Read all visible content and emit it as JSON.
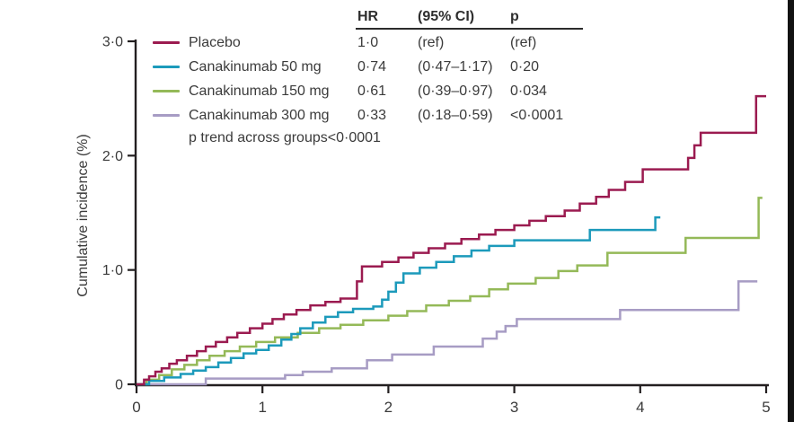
{
  "figure": {
    "background": "#ffffff",
    "right_border_color": "#121212",
    "text_color": "#3b3b3b",
    "axis_color": "#231f20"
  },
  "legend": {
    "columns": {
      "hr": "HR",
      "ci": "(95% CI)",
      "p": "p"
    },
    "rows": [
      {
        "label": "Placebo",
        "color": "#9b1b50",
        "hr": "1·0",
        "ci": "(ref)",
        "p": "(ref)"
      },
      {
        "label": "Canakinumab 50 mg",
        "color": "#1c9abb",
        "hr": "0·74",
        "ci": "(0·47–1·17)",
        "p": "0·20"
      },
      {
        "label": "Canakinumab 150 mg",
        "color": "#94b958",
        "hr": "0·61",
        "ci": "(0·39–0·97)",
        "p": "0·034"
      },
      {
        "label": "Canakinumab 300 mg",
        "color": "#a79cc4",
        "hr": "0·33",
        "ci": "(0·18–0·59)",
        "p": "<0·0001"
      }
    ],
    "trend_note": "p trend across groups<0·0001"
  },
  "chart_data": {
    "type": "line",
    "variant": "step-after cumulative incidence (Kaplan-Meier style)",
    "title": "",
    "xlabel": "",
    "ylabel": "Cumulative incidence (%)",
    "xlim": [
      0,
      5
    ],
    "ylim": [
      0,
      3
    ],
    "grid": false,
    "legend_position": "top-left (table with HR, 95% CI, p)",
    "xticks": [
      {
        "value": 0,
        "label": "0"
      },
      {
        "value": 1,
        "label": "1"
      },
      {
        "value": 2,
        "label": "2"
      },
      {
        "value": 3,
        "label": "3"
      },
      {
        "value": 4,
        "label": "4"
      },
      {
        "value": 5,
        "label": "5"
      }
    ],
    "yticks": [
      {
        "value": 0,
        "label": "0"
      },
      {
        "value": 1,
        "label": "1·0"
      },
      {
        "value": 2,
        "label": "2·0"
      },
      {
        "value": 3,
        "label": "3·0"
      }
    ],
    "series": [
      {
        "name": "Canakinumab 300 mg",
        "color": "#a79cc4",
        "points": [
          [
            0,
            0
          ],
          [
            0.55,
            0.05
          ],
          [
            1.18,
            0.08
          ],
          [
            1.32,
            0.11
          ],
          [
            1.55,
            0.14
          ],
          [
            1.83,
            0.21
          ],
          [
            2.03,
            0.26
          ],
          [
            2.36,
            0.33
          ],
          [
            2.75,
            0.4
          ],
          [
            2.86,
            0.46
          ],
          [
            2.93,
            0.51
          ],
          [
            3.02,
            0.57
          ],
          [
            3.84,
            0.65
          ],
          [
            4.78,
            0.9
          ],
          [
            4.93,
            0.9
          ]
        ]
      },
      {
        "name": "Canakinumab 150 mg",
        "color": "#94b958",
        "points": [
          [
            0,
            0
          ],
          [
            0.08,
            0.04
          ],
          [
            0.18,
            0.08
          ],
          [
            0.28,
            0.13
          ],
          [
            0.38,
            0.17
          ],
          [
            0.48,
            0.21
          ],
          [
            0.58,
            0.25
          ],
          [
            0.7,
            0.29
          ],
          [
            0.82,
            0.33
          ],
          [
            0.95,
            0.37
          ],
          [
            1.1,
            0.41
          ],
          [
            1.28,
            0.45
          ],
          [
            1.45,
            0.49
          ],
          [
            1.62,
            0.52
          ],
          [
            1.8,
            0.56
          ],
          [
            2.0,
            0.6
          ],
          [
            2.15,
            0.64
          ],
          [
            2.3,
            0.69
          ],
          [
            2.48,
            0.73
          ],
          [
            2.65,
            0.77
          ],
          [
            2.8,
            0.83
          ],
          [
            2.95,
            0.88
          ],
          [
            3.17,
            0.93
          ],
          [
            3.35,
            0.99
          ],
          [
            3.5,
            1.04
          ],
          [
            3.74,
            1.15
          ],
          [
            4.36,
            1.28
          ],
          [
            4.94,
            1.63
          ],
          [
            4.97,
            1.63
          ]
        ]
      },
      {
        "name": "Canakinumab 50 mg",
        "color": "#1c9abb",
        "points": [
          [
            0,
            0
          ],
          [
            0.1,
            0.03
          ],
          [
            0.22,
            0.06
          ],
          [
            0.35,
            0.09
          ],
          [
            0.45,
            0.12
          ],
          [
            0.55,
            0.15
          ],
          [
            0.65,
            0.19
          ],
          [
            0.75,
            0.23
          ],
          [
            0.85,
            0.27
          ],
          [
            0.95,
            0.3
          ],
          [
            1.05,
            0.34
          ],
          [
            1.15,
            0.39
          ],
          [
            1.23,
            0.44
          ],
          [
            1.3,
            0.49
          ],
          [
            1.4,
            0.54
          ],
          [
            1.5,
            0.59
          ],
          [
            1.6,
            0.63
          ],
          [
            1.72,
            0.66
          ],
          [
            1.88,
            0.68
          ],
          [
            1.95,
            0.74
          ],
          [
            2.0,
            0.81
          ],
          [
            2.06,
            0.89
          ],
          [
            2.12,
            0.97
          ],
          [
            2.25,
            1.02
          ],
          [
            2.38,
            1.07
          ],
          [
            2.52,
            1.12
          ],
          [
            2.66,
            1.17
          ],
          [
            2.8,
            1.21
          ],
          [
            3.0,
            1.26
          ],
          [
            3.6,
            1.35
          ],
          [
            4.12,
            1.46
          ],
          [
            4.16,
            1.46
          ]
        ]
      },
      {
        "name": "Placebo",
        "color": "#9b1b50",
        "points": [
          [
            0,
            0
          ],
          [
            0.06,
            0.04
          ],
          [
            0.1,
            0.07
          ],
          [
            0.15,
            0.11
          ],
          [
            0.2,
            0.14
          ],
          [
            0.26,
            0.18
          ],
          [
            0.32,
            0.21
          ],
          [
            0.4,
            0.25
          ],
          [
            0.48,
            0.29
          ],
          [
            0.55,
            0.33
          ],
          [
            0.63,
            0.37
          ],
          [
            0.72,
            0.41
          ],
          [
            0.8,
            0.45
          ],
          [
            0.9,
            0.49
          ],
          [
            1.0,
            0.53
          ],
          [
            1.08,
            0.57
          ],
          [
            1.17,
            0.61
          ],
          [
            1.27,
            0.65
          ],
          [
            1.38,
            0.69
          ],
          [
            1.5,
            0.72
          ],
          [
            1.62,
            0.75
          ],
          [
            1.75,
            0.9
          ],
          [
            1.79,
            1.03
          ],
          [
            1.95,
            1.07
          ],
          [
            2.08,
            1.11
          ],
          [
            2.2,
            1.15
          ],
          [
            2.32,
            1.19
          ],
          [
            2.45,
            1.23
          ],
          [
            2.58,
            1.27
          ],
          [
            2.72,
            1.31
          ],
          [
            2.85,
            1.35
          ],
          [
            3.0,
            1.39
          ],
          [
            3.12,
            1.43
          ],
          [
            3.25,
            1.47
          ],
          [
            3.4,
            1.52
          ],
          [
            3.52,
            1.58
          ],
          [
            3.65,
            1.64
          ],
          [
            3.75,
            1.7
          ],
          [
            3.88,
            1.77
          ],
          [
            4.02,
            1.88
          ],
          [
            4.38,
            1.98
          ],
          [
            4.43,
            2.09
          ],
          [
            4.48,
            2.2
          ],
          [
            4.92,
            2.52
          ],
          [
            5.0,
            2.52
          ]
        ]
      }
    ]
  }
}
